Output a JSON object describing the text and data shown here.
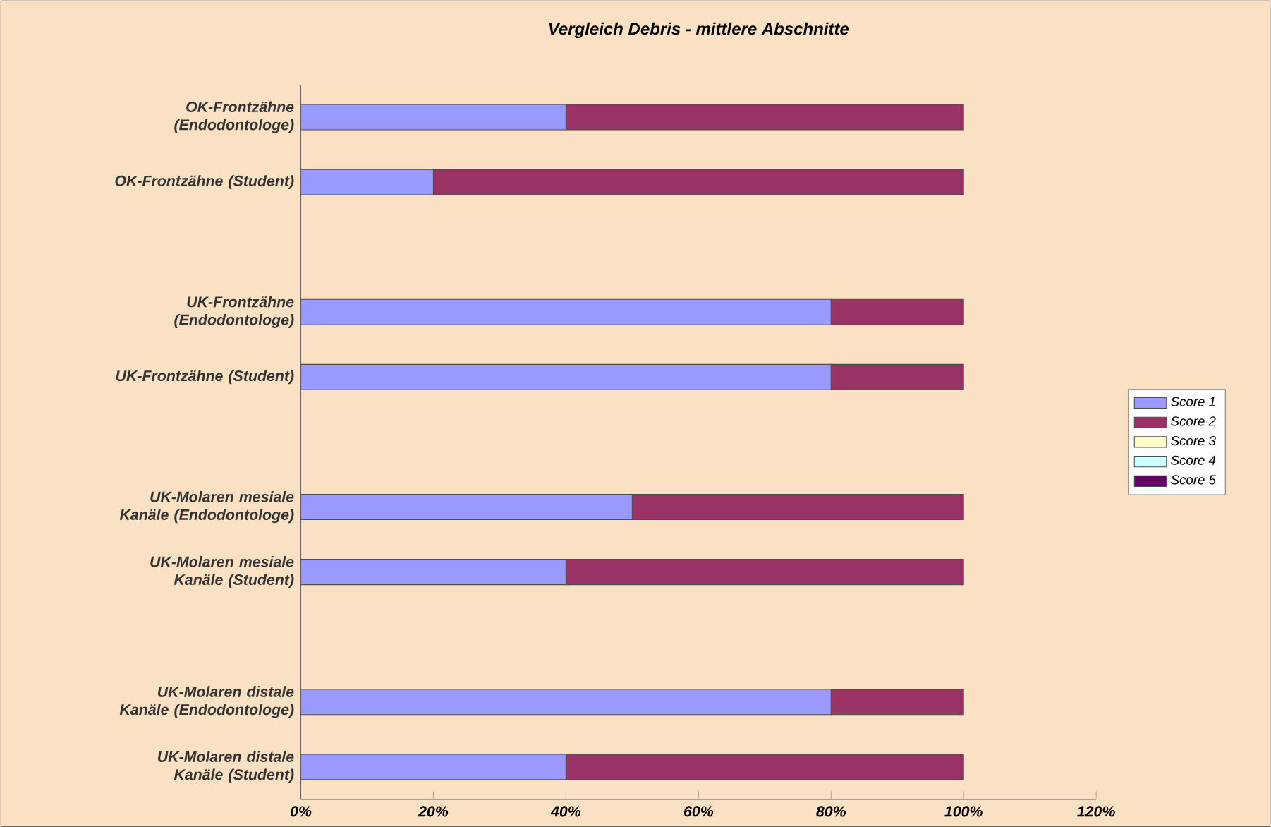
{
  "chart_data": {
    "type": "bar",
    "orientation": "horizontal",
    "stacked": true,
    "title": "Vergleich Debris - mittlere Abschnitte",
    "categories": [
      "OK-Frontzähne (Endodontologe)",
      "OK-Frontzähne (Student)",
      null,
      "UK-Frontzähne (Endodontologe)",
      "UK-Frontzähne (Student)",
      null,
      "UK-Molaren mesiale Kanäle (Endodontologe)",
      "UK-Molaren mesiale Kanäle (Student)",
      null,
      "UK-Molaren distale Kanäle (Endodontologe)",
      "UK-Molaren distale Kanäle (Student)"
    ],
    "series": [
      {
        "name": "Score 1",
        "color": "#9999ff",
        "values": [
          40,
          20,
          null,
          80,
          80,
          null,
          50,
          40,
          null,
          80,
          40
        ]
      },
      {
        "name": "Score 2",
        "color": "#993366",
        "values": [
          60,
          80,
          null,
          20,
          20,
          null,
          50,
          60,
          null,
          20,
          60
        ]
      },
      {
        "name": "Score 3",
        "color": "#ffffcc",
        "values": [
          0,
          0,
          null,
          0,
          0,
          null,
          0,
          0,
          null,
          0,
          0
        ]
      },
      {
        "name": "Score 4",
        "color": "#ccffff",
        "values": [
          0,
          0,
          null,
          0,
          0,
          null,
          0,
          0,
          null,
          0,
          0
        ]
      },
      {
        "name": "Score 5",
        "color": "#660066",
        "values": [
          0,
          0,
          null,
          0,
          0,
          null,
          0,
          0,
          null,
          0,
          0
        ]
      }
    ],
    "xlim": [
      0,
      120
    ],
    "xticks": [
      {
        "value": 0,
        "label": "0%"
      },
      {
        "value": 20,
        "label": "20%"
      },
      {
        "value": 40,
        "label": "40%"
      },
      {
        "value": 60,
        "label": "60%"
      },
      {
        "value": 80,
        "label": "80%"
      },
      {
        "value": 100,
        "label": "100%"
      },
      {
        "value": 120,
        "label": "120%"
      }
    ],
    "legend": "right",
    "grid": false
  }
}
